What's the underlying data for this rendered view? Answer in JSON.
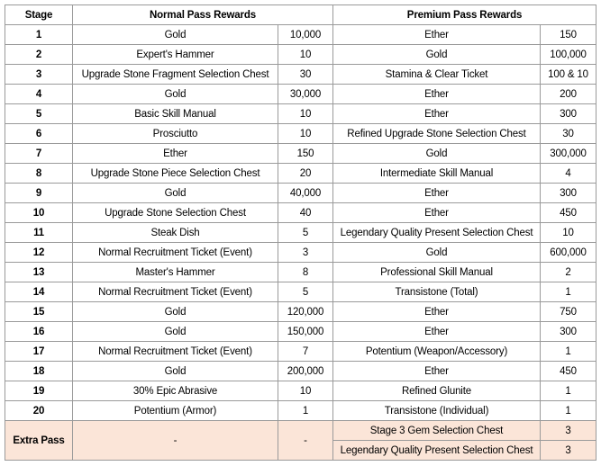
{
  "table": {
    "header": [
      "Stage",
      "Normal Pass Rewards",
      "Premium Pass Rewards"
    ],
    "rows": [
      [
        "1",
        "Gold",
        "10,000",
        "Ether",
        "150"
      ],
      [
        "2",
        "Expert's Hammer",
        "10",
        "Gold",
        "100,000"
      ],
      [
        "3",
        "Upgrade Stone Fragment Selection Chest",
        "30",
        "Stamina & Clear Ticket",
        "100 & 10"
      ],
      [
        "4",
        "Gold",
        "30,000",
        "Ether",
        "200"
      ],
      [
        "5",
        "Basic Skill Manual",
        "10",
        "Ether",
        "300"
      ],
      [
        "6",
        "Prosciutto",
        "10",
        "Refined Upgrade Stone Selection Chest",
        "30"
      ],
      [
        "7",
        "Ether",
        "150",
        "Gold",
        "300,000"
      ],
      [
        "8",
        "Upgrade Stone Piece Selection Chest",
        "20",
        "Intermediate Skill Manual",
        "4"
      ],
      [
        "9",
        "Gold",
        "40,000",
        "Ether",
        "300"
      ],
      [
        "10",
        "Upgrade Stone Selection Chest",
        "40",
        "Ether",
        "450"
      ],
      [
        "11",
        "Steak Dish",
        "5",
        "Legendary Quality Present Selection Chest",
        "10"
      ],
      [
        "12",
        "Normal Recruitment Ticket (Event)",
        "3",
        "Gold",
        "600,000"
      ],
      [
        "13",
        "Master's Hammer",
        "8",
        "Professional Skill Manual",
        "2"
      ],
      [
        "14",
        "Normal Recruitment Ticket (Event)",
        "5",
        "Transistone (Total)",
        "1"
      ],
      [
        "15",
        "Gold",
        "120,000",
        "Ether",
        "750"
      ],
      [
        "16",
        "Gold",
        "150,000",
        "Ether",
        "300"
      ],
      [
        "17",
        "Normal Recruitment Ticket (Event)",
        "7",
        "Potentium (Weapon/Accessory)",
        "1"
      ],
      [
        "18",
        "Gold",
        "200,000",
        "Ether",
        "450"
      ],
      [
        "19",
        "30% Epic Abrasive",
        "10",
        "Refined Glunite",
        "1"
      ],
      [
        "20",
        "Potentium (Armor)",
        "1",
        "Transistone (Individual)",
        "1"
      ]
    ],
    "extra": {
      "label": "Extra Pass",
      "normal_item": "-",
      "normal_qty": "-",
      "premium": [
        [
          "Stage 3 Gem Selection Chest",
          "3"
        ],
        [
          "Legendary Quality Present Selection Chest",
          "3"
        ]
      ]
    }
  }
}
